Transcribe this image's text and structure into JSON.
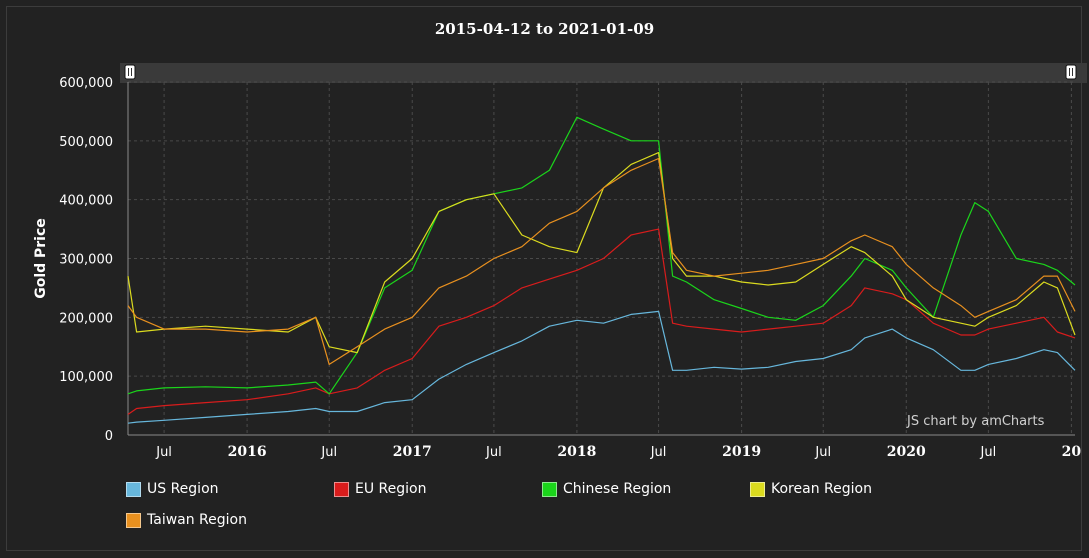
{
  "title": "2015-04-12 to 2021-01-09",
  "credit": "JS chart by amCharts",
  "chart_data": {
    "type": "line",
    "title": "2015-04-12 to 2021-01-09",
    "ylabel": "Gold Price",
    "xlabel": "",
    "ylim": [
      0,
      600000
    ],
    "xlim": [
      "2015-04-12",
      "2021-01-09"
    ],
    "grid": true,
    "legend_position": "bottom",
    "y_ticks": [
      "0",
      "100,000",
      "200,000",
      "300,000",
      "400,000",
      "500,000",
      "600,000"
    ],
    "x_ticks": [
      {
        "date": "2015-07-01",
        "label": "Jul",
        "bold": false
      },
      {
        "date": "2016-01-01",
        "label": "2016",
        "bold": true
      },
      {
        "date": "2016-07-01",
        "label": "Jul",
        "bold": false
      },
      {
        "date": "2017-01-01",
        "label": "2017",
        "bold": true
      },
      {
        "date": "2017-07-01",
        "label": "Jul",
        "bold": false
      },
      {
        "date": "2018-01-01",
        "label": "2018",
        "bold": true
      },
      {
        "date": "2018-07-01",
        "label": "Jul",
        "bold": false
      },
      {
        "date": "2019-01-01",
        "label": "2019",
        "bold": true
      },
      {
        "date": "2019-07-01",
        "label": "Jul",
        "bold": false
      },
      {
        "date": "2020-01-01",
        "label": "2020",
        "bold": true
      },
      {
        "date": "2020-07-01",
        "label": "Jul",
        "bold": false
      },
      {
        "date": "2021-01-01",
        "label": "20",
        "bold": true
      }
    ],
    "x": [
      "2015-04-12",
      "2015-05-01",
      "2015-07-01",
      "2015-10-01",
      "2016-01-01",
      "2016-04-01",
      "2016-06-01",
      "2016-07-01",
      "2016-09-01",
      "2016-11-01",
      "2017-01-01",
      "2017-03-01",
      "2017-05-01",
      "2017-07-01",
      "2017-09-01",
      "2017-11-01",
      "2018-01-01",
      "2018-03-01",
      "2018-05-01",
      "2018-07-01",
      "2018-08-01",
      "2018-09-01",
      "2018-11-01",
      "2019-01-01",
      "2019-03-01",
      "2019-05-01",
      "2019-07-01",
      "2019-09-01",
      "2019-10-01",
      "2019-12-01",
      "2020-01-01",
      "2020-03-01",
      "2020-05-01",
      "2020-06-01",
      "2020-07-01",
      "2020-09-01",
      "2020-11-01",
      "2020-12-01",
      "2021-01-09"
    ],
    "series": [
      {
        "name": "US Region",
        "color": "#67b7dc",
        "values": [
          20000,
          22000,
          25000,
          30000,
          35000,
          40000,
          45000,
          40000,
          40000,
          55000,
          60000,
          95000,
          120000,
          140000,
          160000,
          185000,
          195000,
          190000,
          205000,
          210000,
          110000,
          110000,
          115000,
          112000,
          115000,
          125000,
          130000,
          145000,
          165000,
          180000,
          165000,
          145000,
          110000,
          110000,
          120000,
          130000,
          145000,
          140000,
          110000
        ]
      },
      {
        "name": "EU Region",
        "color": "#d91c1c",
        "values": [
          35000,
          45000,
          50000,
          55000,
          60000,
          70000,
          80000,
          70000,
          80000,
          110000,
          130000,
          185000,
          200000,
          220000,
          250000,
          265000,
          280000,
          300000,
          340000,
          350000,
          190000,
          185000,
          180000,
          175000,
          180000,
          185000,
          190000,
          220000,
          250000,
          240000,
          230000,
          190000,
          170000,
          170000,
          180000,
          190000,
          200000,
          175000,
          165000
        ]
      },
      {
        "name": "Chinese Region",
        "color": "#1bd51b",
        "values": [
          70000,
          75000,
          80000,
          82000,
          80000,
          85000,
          90000,
          70000,
          140000,
          250000,
          280000,
          380000,
          400000,
          410000,
          420000,
          450000,
          540000,
          520000,
          500000,
          500000,
          270000,
          260000,
          230000,
          215000,
          200000,
          195000,
          220000,
          270000,
          300000,
          280000,
          250000,
          200000,
          340000,
          395000,
          380000,
          300000,
          290000,
          280000,
          255000
        ]
      },
      {
        "name": "Korean Region",
        "color": "#dbdb1f",
        "values": [
          270000,
          175000,
          180000,
          185000,
          180000,
          175000,
          200000,
          150000,
          140000,
          260000,
          300000,
          380000,
          400000,
          410000,
          340000,
          320000,
          310000,
          420000,
          460000,
          480000,
          300000,
          270000,
          270000,
          260000,
          255000,
          260000,
          290000,
          320000,
          310000,
          270000,
          230000,
          200000,
          190000,
          185000,
          200000,
          220000,
          260000,
          250000,
          170000
        ]
      },
      {
        "name": "Taiwan Region",
        "color": "#e8901f",
        "values": [
          220000,
          200000,
          180000,
          180000,
          175000,
          180000,
          200000,
          120000,
          150000,
          180000,
          200000,
          250000,
          270000,
          300000,
          320000,
          360000,
          380000,
          420000,
          450000,
          470000,
          310000,
          280000,
          270000,
          275000,
          280000,
          290000,
          300000,
          330000,
          340000,
          320000,
          290000,
          250000,
          220000,
          200000,
          210000,
          230000,
          270000,
          270000,
          210000
        ]
      }
    ]
  }
}
